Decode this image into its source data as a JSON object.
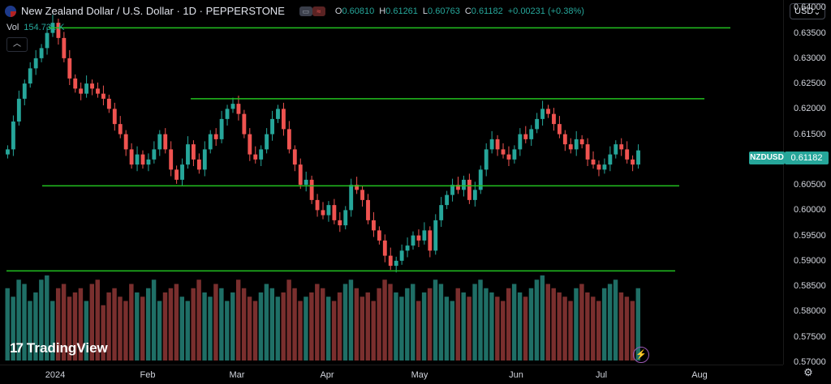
{
  "header": {
    "title": "New Zealand Dollar / U.S. Dollar · 1D · PEPPERSTONE",
    "ohlc": [
      {
        "k": "O",
        "v": "0.60810"
      },
      {
        "k": "H",
        "v": "0.61261"
      },
      {
        "k": "L",
        "v": "0.60763"
      },
      {
        "k": "C",
        "v": "0.61182"
      }
    ],
    "change": "+0.00231 (+0.38%)"
  },
  "volume": {
    "label": "Vol",
    "value": "154.731 K"
  },
  "currency": {
    "label": "USD"
  },
  "last_price": {
    "symbol": "NZDUSD",
    "value": "0.61182"
  },
  "brand": {
    "name": "TradingView"
  },
  "icons": [
    "collapse-icon",
    "chevron-down-icon",
    "lightning-icon",
    "gear-icon",
    "flag-icon"
  ],
  "colors": {
    "up": "#26a69a",
    "down": "#ef5350",
    "line": "#22c11f"
  },
  "chart_data": {
    "type": "candlestick",
    "y_ticks": [
      "0.64000",
      "0.63500",
      "0.63000",
      "0.62500",
      "0.62000",
      "0.61500",
      "0.61000",
      "0.60500",
      "0.60000",
      "0.59500",
      "0.59000",
      "0.58500",
      "0.58000",
      "0.57500",
      "0.57000"
    ],
    "x_ticks": [
      "2024",
      "Feb",
      "Mar",
      "Apr",
      "May",
      "Jun",
      "Jul",
      "Aug"
    ],
    "ylim": [
      0.5695,
      0.6415
    ],
    "horizontal_lines": [
      0.636,
      0.622,
      0.6048,
      0.588
    ],
    "close_path": [
      0.612,
      0.6175,
      0.622,
      0.625,
      0.628,
      0.63,
      0.632,
      0.635,
      0.637,
      0.634,
      0.63,
      0.626,
      0.624,
      0.623,
      0.625,
      0.624,
      0.623,
      0.622,
      0.62,
      0.617,
      0.615,
      0.612,
      0.609,
      0.611,
      0.609,
      0.61,
      0.612,
      0.615,
      0.612,
      0.608,
      0.606,
      0.609,
      0.613,
      0.61,
      0.608,
      0.612,
      0.615,
      0.614,
      0.618,
      0.62,
      0.621,
      0.619,
      0.615,
      0.611,
      0.61,
      0.612,
      0.615,
      0.618,
      0.62,
      0.616,
      0.612,
      0.609,
      0.605,
      0.606,
      0.602,
      0.6,
      0.599,
      0.601,
      0.598,
      0.597,
      0.6,
      0.605,
      0.604,
      0.602,
      0.598,
      0.596,
      0.594,
      0.591,
      0.589,
      0.59,
      0.592,
      0.593,
      0.595,
      0.594,
      0.596,
      0.592,
      0.598,
      0.601,
      0.603,
      0.605,
      0.604,
      0.606,
      0.602,
      0.604,
      0.608,
      0.612,
      0.614,
      0.612,
      0.611,
      0.61,
      0.612,
      0.615,
      0.614,
      0.616,
      0.618,
      0.62,
      0.619,
      0.617,
      0.615,
      0.613,
      0.612,
      0.614,
      0.613,
      0.61,
      0.609,
      0.608,
      0.609,
      0.611,
      0.613,
      0.612,
      0.61,
      0.609,
      0.6118
    ],
    "volume": [
      85,
      75,
      95,
      90,
      70,
      80,
      95,
      100,
      70,
      85,
      90,
      75,
      80,
      85,
      70,
      90,
      95,
      65,
      80,
      85,
      75,
      70,
      90,
      80,
      75,
      85,
      95,
      70,
      80,
      85,
      90,
      75,
      70,
      85,
      95,
      80,
      75,
      90,
      85,
      70,
      80,
      95,
      85,
      75,
      70,
      80,
      90,
      85,
      75,
      80,
      95,
      85,
      70,
      75,
      80,
      90,
      85,
      75,
      70,
      80,
      90,
      95,
      85,
      75,
      80,
      70,
      85,
      95,
      90,
      80,
      75,
      85,
      90,
      70,
      80,
      85,
      95,
      90,
      75,
      70,
      85,
      80,
      75,
      90,
      95,
      85,
      80,
      75,
      70,
      85,
      90,
      80,
      75,
      85,
      95,
      100,
      90,
      85,
      80,
      75,
      70,
      85,
      90,
      80,
      75,
      70,
      85,
      90,
      95,
      80,
      75,
      70,
      85
    ]
  }
}
